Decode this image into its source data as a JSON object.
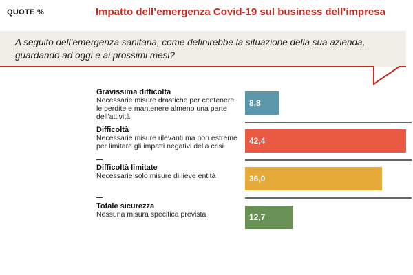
{
  "header": {
    "quote_label": "QUOTE %",
    "title": "Impatto dell’emergenza Covid-19 sul business dell’impresa"
  },
  "question": "A seguito dell’emergenza sanitaria, come definirebbe la situazione della sua azienda, guardando ad oggi e ai prossimi mesi?",
  "chart_data": {
    "type": "bar",
    "orientation": "horizontal",
    "title": "Impatto dell’emergenza Covid-19 sul business dell’impresa",
    "categories": [
      "Gravissima difficoltà",
      "Difficoltà",
      "Difficoltà limitate",
      "Totale sicurezza"
    ],
    "descriptions": [
      "Necessarie misure drastiche per contenere le perdite e mantenere almeno una parte dell’attività",
      "Necessarie misure rilevanti ma non estreme per limitare gli impatti negativi della crisi",
      "Necessarie solo misure di lieve entità",
      "Nessuna misura specifica prevista"
    ],
    "values": [
      8.8,
      42.4,
      36.0,
      12.7
    ],
    "value_labels": [
      "8,8",
      "42,4",
      "36,0",
      "12,7"
    ],
    "colors": [
      "#5b97ab",
      "#ea5a43",
      "#e6aa38",
      "#6a9155"
    ],
    "unit": "%"
  }
}
